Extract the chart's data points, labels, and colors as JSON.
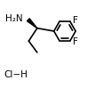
{
  "bg_color": "#ffffff",
  "line_color": "#000000",
  "f_color": "#000000",
  "text_color": "#000000",
  "h2n_label": "H₂N",
  "f_label": "F",
  "cl_h_label": "Cl−H",
  "bond_width": 1.2,
  "font_size": 7.5
}
